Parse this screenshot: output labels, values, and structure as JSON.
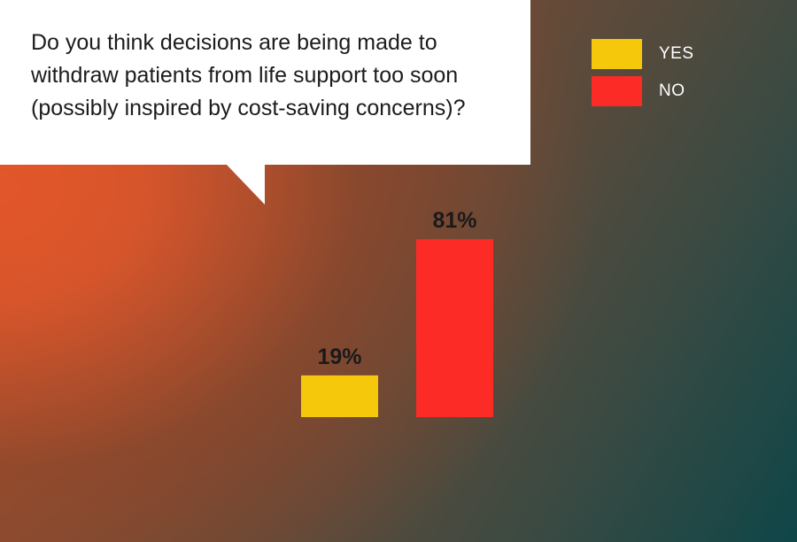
{
  "question": "Do you think decisions are being made to withdraw patients from life support too soon (possibly inspired by cost-saving concerns)?",
  "legend": [
    {
      "label": "YES",
      "color": "#f5c80c"
    },
    {
      "label": "NO",
      "color": "#fc2b26"
    }
  ],
  "chart_data": {
    "type": "bar",
    "title": "Do you think decisions are being made to withdraw patients from life support too soon (possibly inspired by cost-saving concerns)?",
    "categories": [
      "YES",
      "NO"
    ],
    "values": [
      19,
      81
    ],
    "value_labels": [
      "19%",
      "81%"
    ],
    "colors": [
      "#f5c80c",
      "#fc2b26"
    ],
    "ylim": [
      0,
      100
    ],
    "grid": false,
    "legend_position": "top-right"
  }
}
